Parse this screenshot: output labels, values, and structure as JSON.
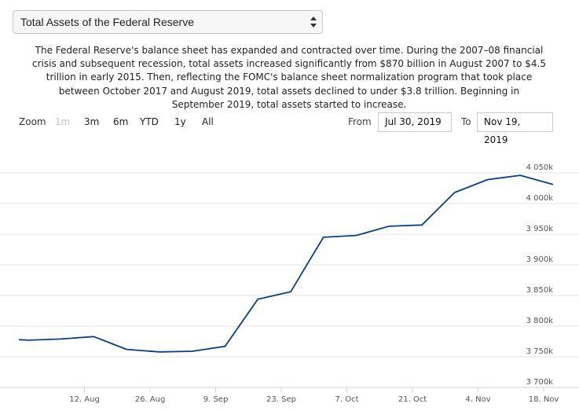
{
  "selector": {
    "value": "Total Assets of the Federal Reserve"
  },
  "description": "The Federal Reserve's balance sheet has expanded and contracted over time. During the 2007–08 financial crisis and subsequent recession, total assets increased significantly from $870 billion in August 2007 to $4.5 trillion in early 2015. Then, reflecting the FOMC's balance sheet normalization program that took place between October 2017 and August 2019, total assets declined to under $3.8 trillion. Beginning in September 2019, total assets started to increase.",
  "zoom": {
    "label": "Zoom",
    "buttons": [
      "1m",
      "3m",
      "6m",
      "YTD",
      "1y",
      "All"
    ],
    "disabled": "1m"
  },
  "range": {
    "from_label": "From",
    "from_value": "Jul 30, 2019",
    "to_label": "To",
    "to_value": "Nov 19, 2019"
  },
  "colors": {
    "series": "#0b3f86",
    "grid": "#e6e6e6",
    "axis": "#ccd6eb"
  },
  "chart_data": {
    "type": "line",
    "x": [
      "2019-07-29",
      "2019-07-31",
      "2019-08-07",
      "2019-08-14",
      "2019-08-21",
      "2019-08-28",
      "2019-09-04",
      "2019-09-11",
      "2019-09-18",
      "2019-09-25",
      "2019-10-02",
      "2019-10-09",
      "2019-10-16",
      "2019-10-23",
      "2019-10-30",
      "2019-11-06",
      "2019-11-13",
      "2019-11-20"
    ],
    "values": [
      3778,
      3777,
      3779,
      3783,
      3762,
      3758,
      3759,
      3767,
      3844,
      3856,
      3945,
      3948,
      3963,
      3965,
      4018,
      4039,
      4046,
      4031
    ],
    "ylim": [
      3700,
      4050
    ],
    "y_ticks": [
      3700,
      3750,
      3800,
      3850,
      3900,
      3950,
      4000,
      4050
    ],
    "y_tick_labels": [
      "3 700k",
      "3 750k",
      "3 800k",
      "3 850k",
      "3 900k",
      "3 950k",
      "4 000k",
      "4 050k"
    ],
    "x_ticks": [
      "2019-08-12",
      "2019-08-26",
      "2019-09-09",
      "2019-09-23",
      "2019-10-07",
      "2019-10-21",
      "2019-11-04",
      "2019-11-18"
    ],
    "x_tick_labels": [
      "12. Aug",
      "26. Aug",
      "9. Sep",
      "23. Sep",
      "7. Oct",
      "21. Oct",
      "4. Nov",
      "18. Nov"
    ],
    "xlim": [
      "2019-07-29",
      "2019-11-20"
    ],
    "grid": true
  }
}
